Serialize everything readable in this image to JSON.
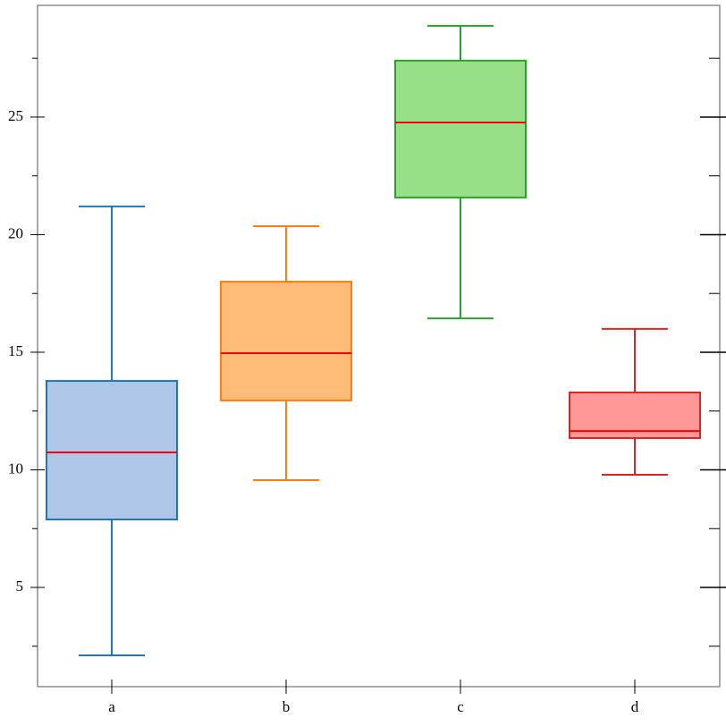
{
  "chart_data": {
    "type": "box",
    "categories": [
      "a",
      "b",
      "c",
      "d"
    ],
    "boxes": [
      {
        "low": 2.11,
        "q1": 7.89,
        "median": 10.74,
        "q3": 13.78,
        "high": 21.2,
        "color": "#1f77b4",
        "fill": "#aec7e8"
      },
      {
        "low": 9.56,
        "q1": 12.95,
        "median": 14.96,
        "q3": 18.0,
        "high": 20.36,
        "color": "#ff7f0e",
        "fill": "#ffbb78"
      },
      {
        "low": 16.44,
        "q1": 21.58,
        "median": 24.77,
        "q3": 27.4,
        "high": 28.88,
        "color": "#2ca02c",
        "fill": "#98df8a"
      },
      {
        "low": 9.79,
        "q1": 11.35,
        "median": 11.65,
        "q3": 13.29,
        "high": 15.99,
        "color": "#d62728",
        "fill": "#ff9896"
      }
    ],
    "median_color": "#ff0000",
    "ylim": [
      0.78,
      29.75
    ],
    "yticks": [
      5,
      10,
      15,
      20,
      25
    ],
    "yminorticks": [
      2.5,
      7.5,
      12.5,
      17.5,
      22.5,
      27.5
    ]
  }
}
